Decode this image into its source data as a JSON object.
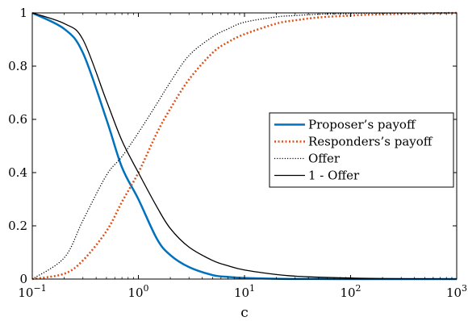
{
  "chart_data": {
    "type": "line",
    "xlabel": "c",
    "ylabel": "",
    "title": "",
    "xscale": "log",
    "xlim": [
      0.1,
      1000
    ],
    "ylim": [
      0,
      1
    ],
    "grid": false,
    "legend_position": "center-right",
    "x_ticks": [
      {
        "value": 0.1,
        "base": "10",
        "exp": "−1"
      },
      {
        "value": 1,
        "base": "10",
        "exp": "0"
      },
      {
        "value": 10,
        "base": "10",
        "exp": "1"
      },
      {
        "value": 100,
        "base": "10",
        "exp": "2"
      },
      {
        "value": 1000,
        "base": "10",
        "exp": "3"
      }
    ],
    "y_ticks": [
      {
        "value": 0,
        "label": "0"
      },
      {
        "value": 0.2,
        "label": "0.2"
      },
      {
        "value": 0.4,
        "label": "0.4"
      },
      {
        "value": 0.6,
        "label": "0.6"
      },
      {
        "value": 0.8,
        "label": "0.8"
      },
      {
        "value": 1,
        "label": "1"
      }
    ],
    "x": [
      0.1,
      0.2,
      0.3,
      0.5,
      0.7,
      1,
      1.5,
      2,
      3,
      5,
      7,
      10,
      20,
      30,
      50,
      100,
      200,
      1000
    ],
    "series": [
      {
        "name": "Proposer’s payoff",
        "color": "#0072BD",
        "dash": "solid",
        "width": 2.5,
        "values": [
          1.0,
          0.94,
          0.85,
          0.6,
          0.42,
          0.3,
          0.15,
          0.09,
          0.045,
          0.015,
          0.008,
          0.004,
          0.001,
          0.0005,
          0.0002,
          0.0,
          0.0,
          0.0
        ]
      },
      {
        "name": "Responders’s payoff",
        "color": "#D95319",
        "dash": "2,2.5",
        "width": 2.5,
        "values": [
          0.0,
          0.02,
          0.07,
          0.18,
          0.29,
          0.4,
          0.55,
          0.64,
          0.75,
          0.85,
          0.89,
          0.92,
          0.96,
          0.972,
          0.983,
          0.99,
          0.995,
          1.0
        ]
      },
      {
        "name": "Offer",
        "color": "#000000",
        "dash": "1.2,2",
        "width": 1.3,
        "values": [
          0.0,
          0.08,
          0.22,
          0.39,
          0.46,
          0.55,
          0.66,
          0.74,
          0.84,
          0.91,
          0.94,
          0.965,
          0.985,
          0.99,
          0.995,
          0.998,
          0.999,
          1.0
        ]
      },
      {
        "name": "1 - Offer",
        "color": "#000000",
        "dash": "solid",
        "width": 1.3,
        "values": [
          1.0,
          0.96,
          0.9,
          0.67,
          0.52,
          0.4,
          0.27,
          0.19,
          0.12,
          0.07,
          0.05,
          0.034,
          0.017,
          0.011,
          0.007,
          0.004,
          0.002,
          0.0
        ]
      }
    ]
  }
}
